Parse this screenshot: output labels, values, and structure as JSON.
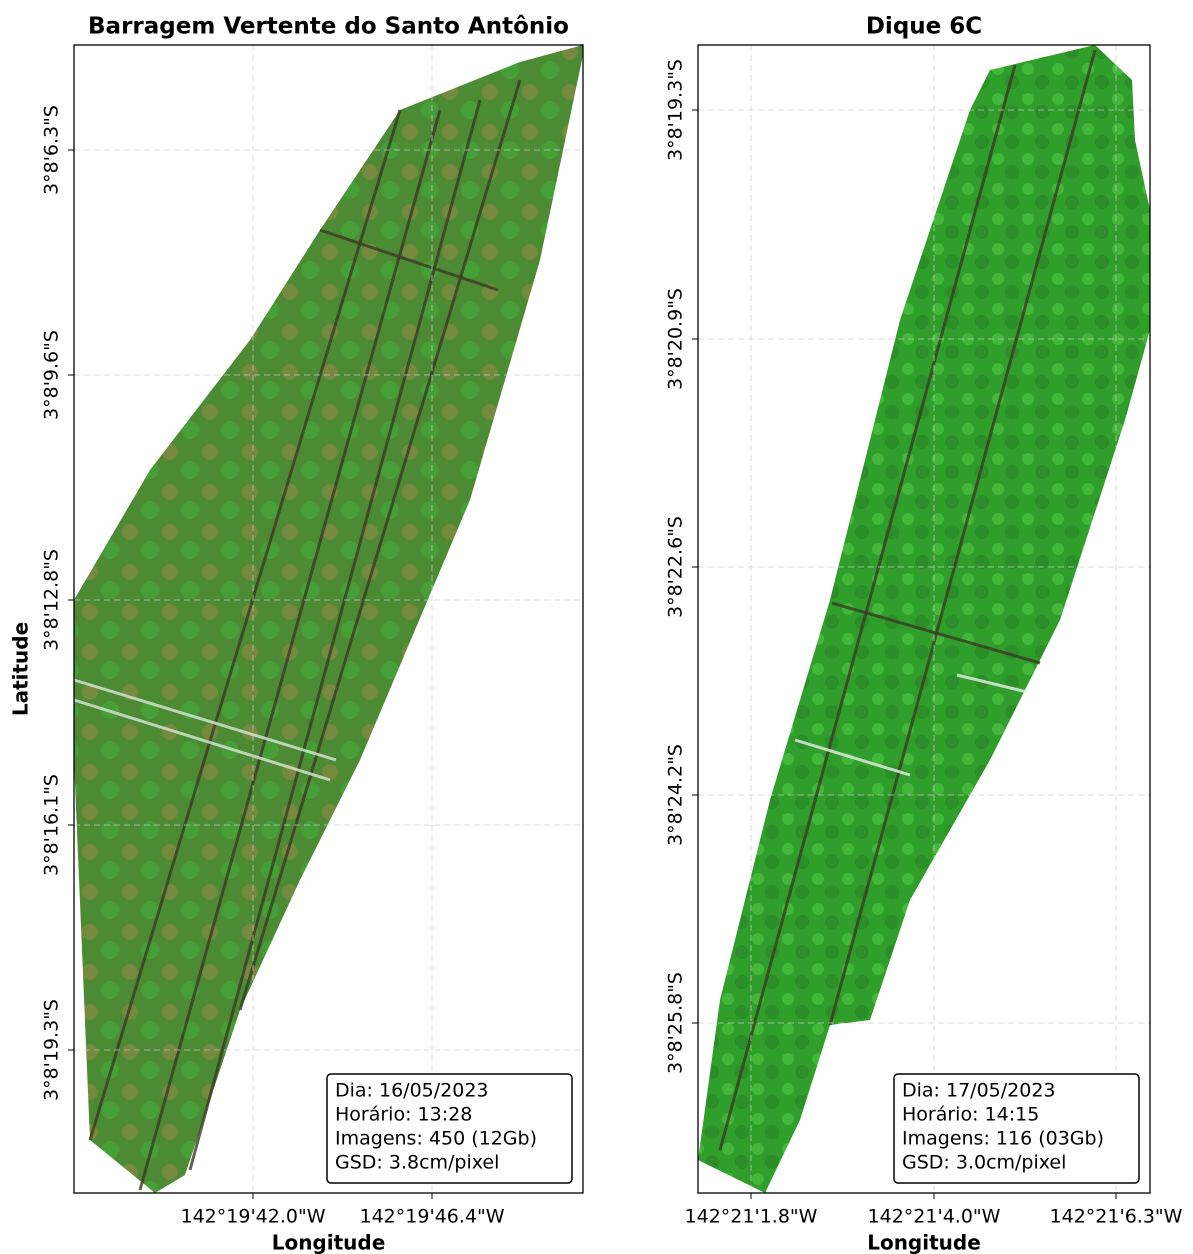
{
  "panels": [
    {
      "title": "Barragem Vertente do Santo Antônio",
      "xlabel": "Longitude",
      "ylabel": "Latitude",
      "xticks": [
        "142°19'42.0\"W",
        "142°19'46.4\"W"
      ],
      "yticks": [
        "3°8'6.3\"S",
        "3°8'9.6\"S",
        "3°8'12.8\"S",
        "3°8'16.1\"S",
        "3°8'19.3\"S"
      ],
      "info": [
        "Dia: 16/05/2023",
        "Horário: 13:28",
        "Imagens: 450 (12Gb)",
        "GSD: 3.8cm/pixel"
      ]
    },
    {
      "title": "Dique 6C",
      "xlabel": "Longitude",
      "xticks": [
        "142°21'1.8\"W",
        "142°21'4.0\"W",
        "142°21'6.3\"W"
      ],
      "yticks": [
        "3°8'19.3\"S",
        "3°8'20.9\"S",
        "3°8'22.6\"S",
        "3°8'24.2\"S",
        "3°8'25.8\"S"
      ],
      "info": [
        "Dia: 17/05/2023",
        "Horário: 14:15",
        "Imagens: 116 (03Gb)",
        "GSD: 3.0cm/pixel"
      ]
    }
  ]
}
